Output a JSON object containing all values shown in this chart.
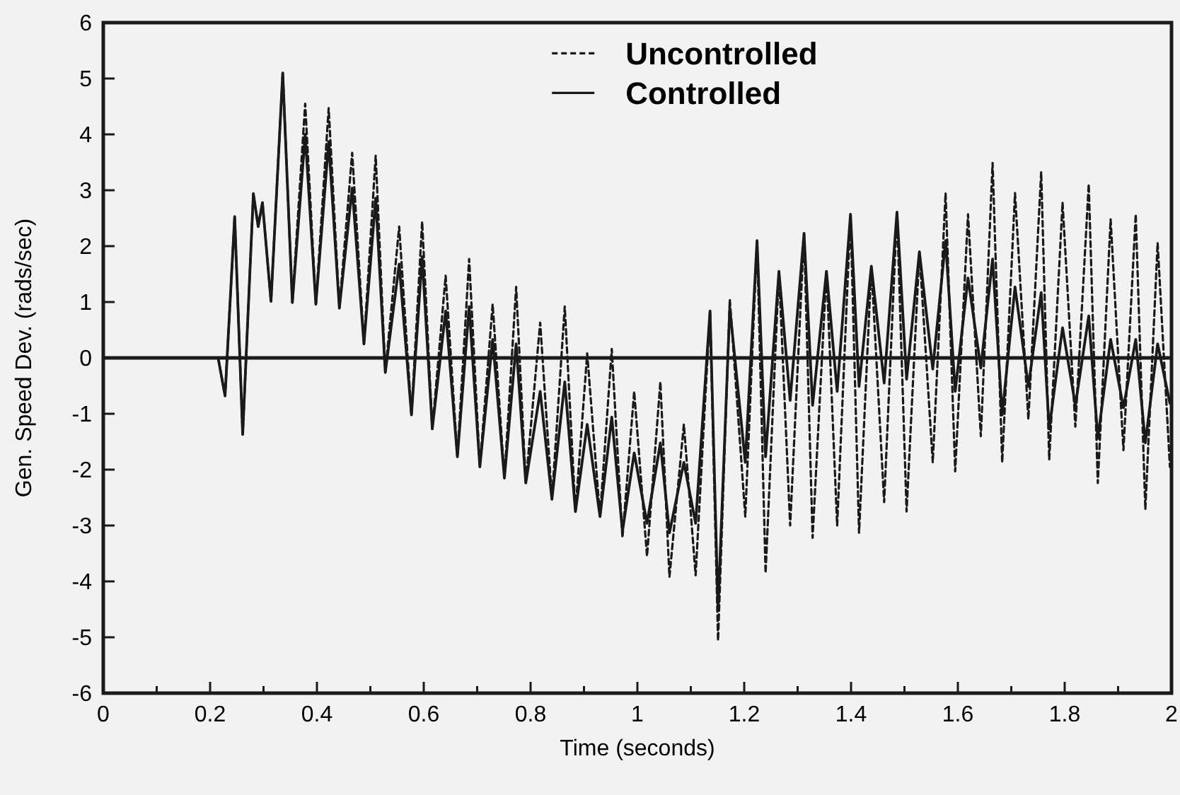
{
  "chart_data": {
    "type": "line",
    "xlabel": "Time (seconds)",
    "ylabel": "Gen. Speed Dev. (rads/sec)",
    "x": [
      0.215,
      0.228,
      0.246,
      0.261,
      0.281,
      0.29,
      0.298,
      0.314,
      0.336,
      0.354,
      0.378,
      0.398,
      0.422,
      0.442,
      0.466,
      0.488,
      0.51,
      0.528,
      0.554,
      0.577,
      0.597,
      0.616,
      0.641,
      0.663,
      0.685,
      0.705,
      0.729,
      0.751,
      0.773,
      0.791,
      0.818,
      0.84,
      0.864,
      0.884,
      0.906,
      0.93,
      0.952,
      0.972,
      0.994,
      1.018,
      1.043,
      1.06,
      1.087,
      1.109,
      1.136,
      1.151,
      1.173,
      1.202,
      1.224,
      1.24,
      1.265,
      1.286,
      1.312,
      1.328,
      1.354,
      1.374,
      1.399,
      1.415,
      1.438,
      1.462,
      1.486,
      1.504,
      1.528,
      1.553,
      1.577,
      1.595,
      1.619,
      1.643,
      1.665,
      1.683,
      1.707,
      1.732,
      1.756,
      1.771,
      1.796,
      1.82,
      1.845,
      1.862,
      1.886,
      1.91,
      1.933,
      1.951,
      1.974,
      1.997
    ],
    "series": [
      {
        "name": "Uncontrolled",
        "color": "#1a1a1a",
        "line_style": "dashed",
        "values": [
          0,
          -0.68,
          2.53,
          -1.37,
          2.94,
          2.35,
          2.78,
          1.01,
          5.1,
          0.99,
          4.55,
          0.96,
          4.47,
          0.89,
          3.67,
          0.25,
          3.62,
          -0.26,
          2.35,
          -1.02,
          2.44,
          -1.27,
          1.47,
          -1.77,
          1.77,
          -1.95,
          0.96,
          -2.15,
          1.27,
          -2.24,
          0.63,
          -2.53,
          0.92,
          -2.75,
          0.08,
          -2.84,
          0.16,
          -3.22,
          -0.6,
          -3.55,
          -0.43,
          -3.92,
          -1.19,
          -3.89,
          0.84,
          -5.06,
          1.05,
          -2.84,
          2.1,
          -3.85,
          1.55,
          -3.0,
          2.23,
          -3.22,
          1.55,
          -3.0,
          2.57,
          -3.13,
          1.64,
          -2.58,
          2.61,
          -2.75,
          1.9,
          -1.87,
          2.95,
          -2.03,
          2.57,
          -1.4,
          3.49,
          -1.87,
          2.95,
          -1.1,
          3.33,
          -1.82,
          2.78,
          -1.23,
          3.11,
          -2.24,
          2.48,
          -1.65,
          2.57,
          -2.71,
          2.06,
          -1.95
        ]
      },
      {
        "name": "Controlled",
        "color": "#1a1a1a",
        "line_style": "solid",
        "values": [
          0,
          -0.68,
          2.53,
          -1.37,
          2.94,
          2.35,
          2.78,
          1.01,
          5.1,
          0.99,
          4.0,
          0.96,
          3.87,
          0.89,
          3.04,
          0.25,
          2.86,
          -0.26,
          1.68,
          -1.02,
          1.81,
          -1.27,
          0.84,
          -1.77,
          0.92,
          -1.95,
          0.33,
          -2.15,
          0.25,
          -2.24,
          -0.6,
          -2.53,
          -0.43,
          -2.75,
          -1.19,
          -2.84,
          -1.06,
          -3.1,
          -1.7,
          -2.96,
          -1.52,
          -3.13,
          -1.87,
          -2.96,
          0.84,
          -4.5,
          0.9,
          -1.87,
          2.1,
          -1.77,
          1.55,
          -0.76,
          2.23,
          -0.85,
          1.55,
          -0.6,
          2.57,
          -0.51,
          1.64,
          -0.45,
          2.61,
          -0.38,
          1.9,
          -0.2,
          2.1,
          -0.6,
          1.43,
          -0.18,
          1.77,
          -1.02,
          1.27,
          -0.51,
          1.17,
          -1.27,
          0.54,
          -0.85,
          0.75,
          -1.44,
          0.33,
          -0.89,
          0.33,
          -1.52,
          0.25,
          -0.81
        ]
      }
    ],
    "xlim": [
      0,
      2
    ],
    "ylim": [
      -6,
      6
    ],
    "xticks": [
      0,
      {
        "value": 0.1,
        "label": null
      },
      0.2,
      {
        "value": 0.3,
        "label": null
      },
      0.4,
      {
        "value": 0.5,
        "label": null
      },
      0.6,
      {
        "value": 0.7,
        "label": null
      },
      0.8,
      {
        "value": 0.9,
        "label": null
      },
      1,
      {
        "value": 1.1,
        "label": null
      },
      1.2,
      {
        "value": 1.3,
        "label": null
      },
      1.4,
      {
        "value": 1.5,
        "label": null
      },
      1.6,
      {
        "value": 1.7,
        "label": null
      },
      1.8,
      {
        "value": 1.9,
        "label": null
      },
      2
    ],
    "yticks": [
      -6,
      -5,
      -4,
      -3,
      -2,
      -1,
      0,
      1,
      2,
      3,
      4,
      5,
      6
    ],
    "ref_lines": [
      {
        "axis": "y",
        "value": 0,
        "color": "#1a1a1a"
      }
    ],
    "grid": false,
    "legend": "top",
    "marker": "none"
  }
}
